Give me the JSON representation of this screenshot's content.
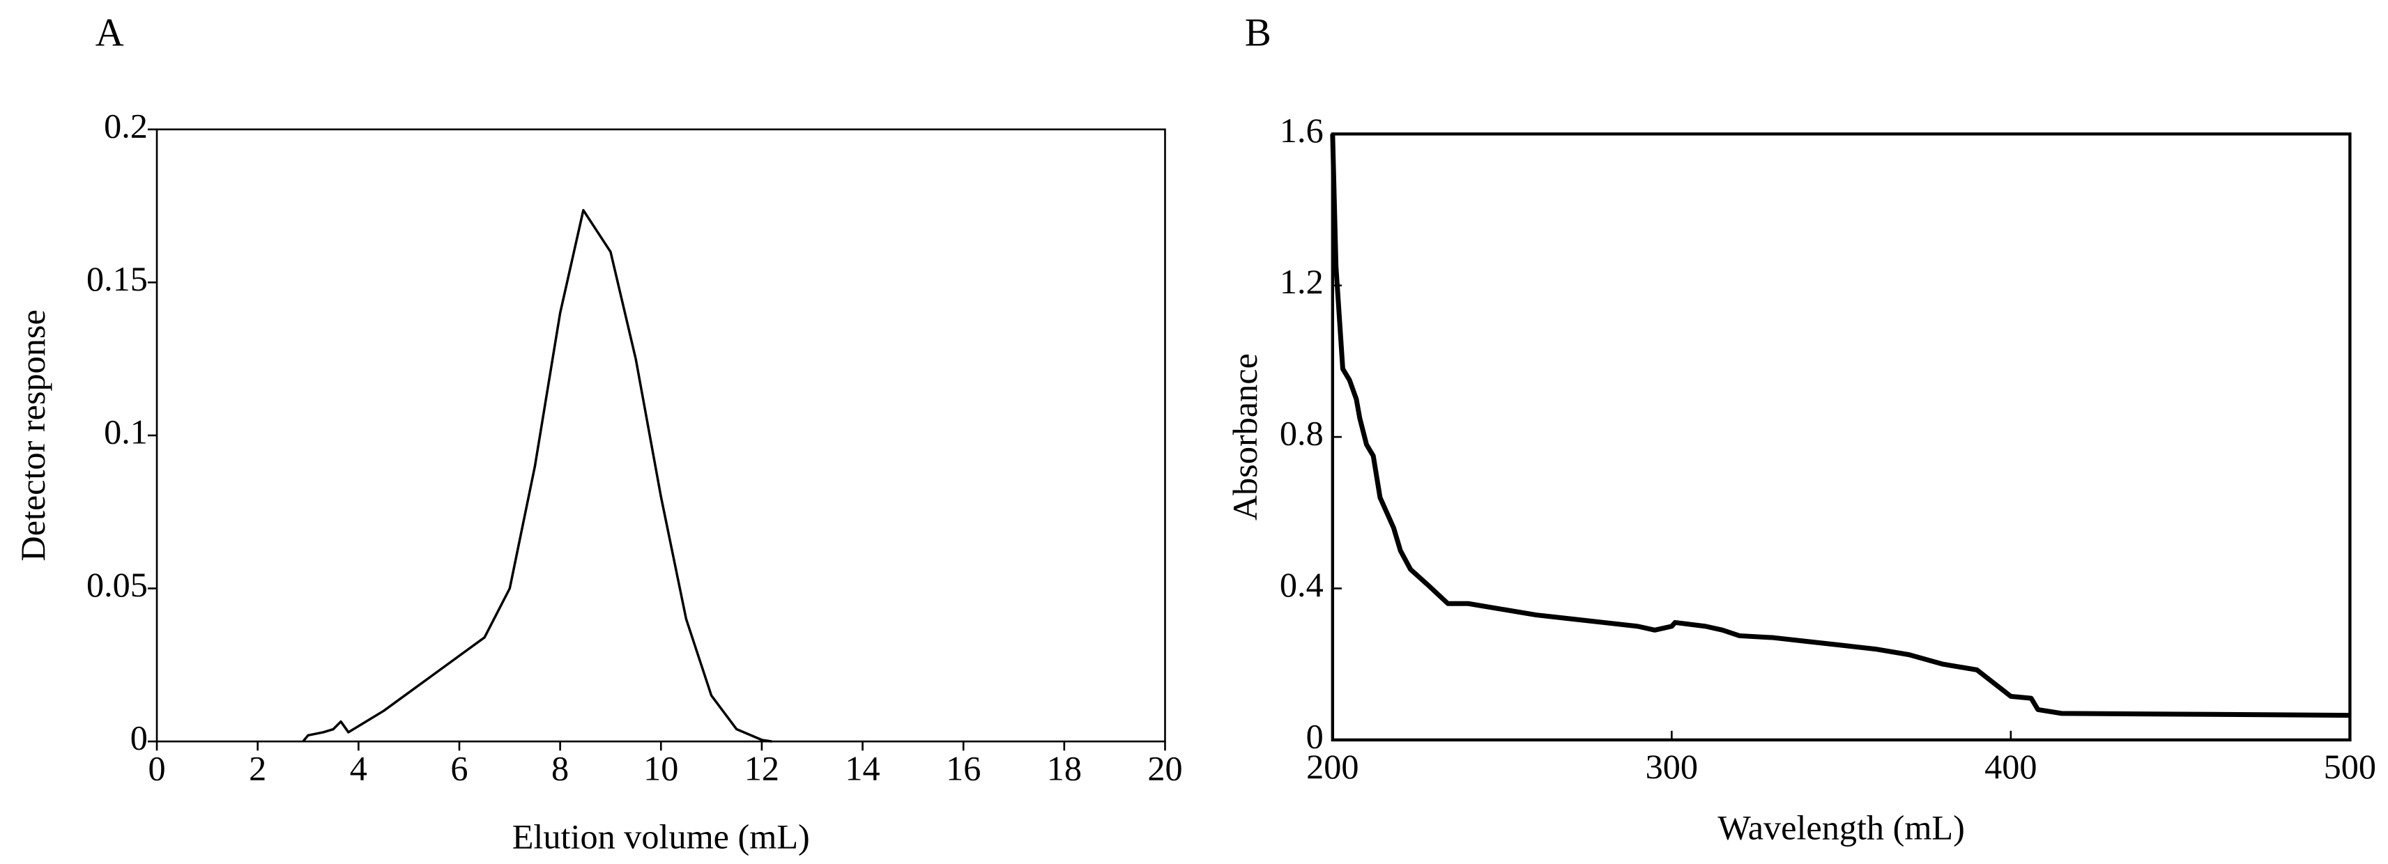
{
  "chart_data": [
    {
      "type": "line",
      "label": "A",
      "x_label": "Elution volume (mL)",
      "y_label": "Detector response",
      "color": "#000000",
      "xlim": [
        0,
        20
      ],
      "xticks": [
        0,
        2,
        4,
        6,
        8,
        10,
        12,
        14,
        16,
        18,
        20
      ],
      "ylim": [
        0,
        0.2
      ],
      "yticks": [
        0,
        0.05,
        0.1,
        0.15,
        0.2
      ],
      "x": [
        2.9,
        3.0,
        3.3,
        3.5,
        3.65,
        3.8,
        4.0,
        4.5,
        5.0,
        5.5,
        6.0,
        6.5,
        7.0,
        7.5,
        8.0,
        8.46,
        9.0,
        9.5,
        10.0,
        10.5,
        11.0,
        11.5,
        12.0,
        12.2
      ],
      "values": [
        0,
        0.002,
        0.003,
        0.004,
        0.0065,
        0.003,
        0.005,
        0.01,
        0.016,
        0.022,
        0.028,
        0.034,
        0.05,
        0.09,
        0.14,
        0.1736,
        0.16,
        0.125,
        0.08,
        0.04,
        0.015,
        0.004,
        0.0005,
        0
      ]
    },
    {
      "type": "line",
      "label": "B",
      "x_label": "Wavelength (mL)",
      "y_label": "Absorbance",
      "color": "#000000",
      "xlim": [
        200,
        500
      ],
      "xticks": [
        200,
        300,
        400,
        500
      ],
      "ylim": [
        0,
        1.6
      ],
      "yticks": [
        0,
        0.4,
        0.8,
        1.2,
        1.6
      ],
      "x": [
        200,
        201,
        203,
        205,
        207,
        208,
        210,
        212,
        214,
        216,
        218,
        220,
        223,
        228,
        234,
        240,
        250,
        260,
        270,
        280,
        290,
        295,
        300,
        301,
        310,
        315,
        320,
        330,
        340,
        350,
        360,
        370,
        380,
        390,
        395,
        400,
        406,
        408,
        415,
        450,
        500
      ],
      "values": [
        1.6,
        1.25,
        0.98,
        0.95,
        0.9,
        0.85,
        0.78,
        0.75,
        0.64,
        0.6,
        0.56,
        0.5,
        0.45,
        0.41,
        0.36,
        0.36,
        0.345,
        0.33,
        0.32,
        0.31,
        0.3,
        0.29,
        0.3,
        0.31,
        0.3,
        0.29,
        0.275,
        0.27,
        0.26,
        0.25,
        0.24,
        0.225,
        0.2,
        0.185,
        0.15,
        0.115,
        0.11,
        0.08,
        0.07,
        0.068,
        0.065
      ]
    }
  ]
}
